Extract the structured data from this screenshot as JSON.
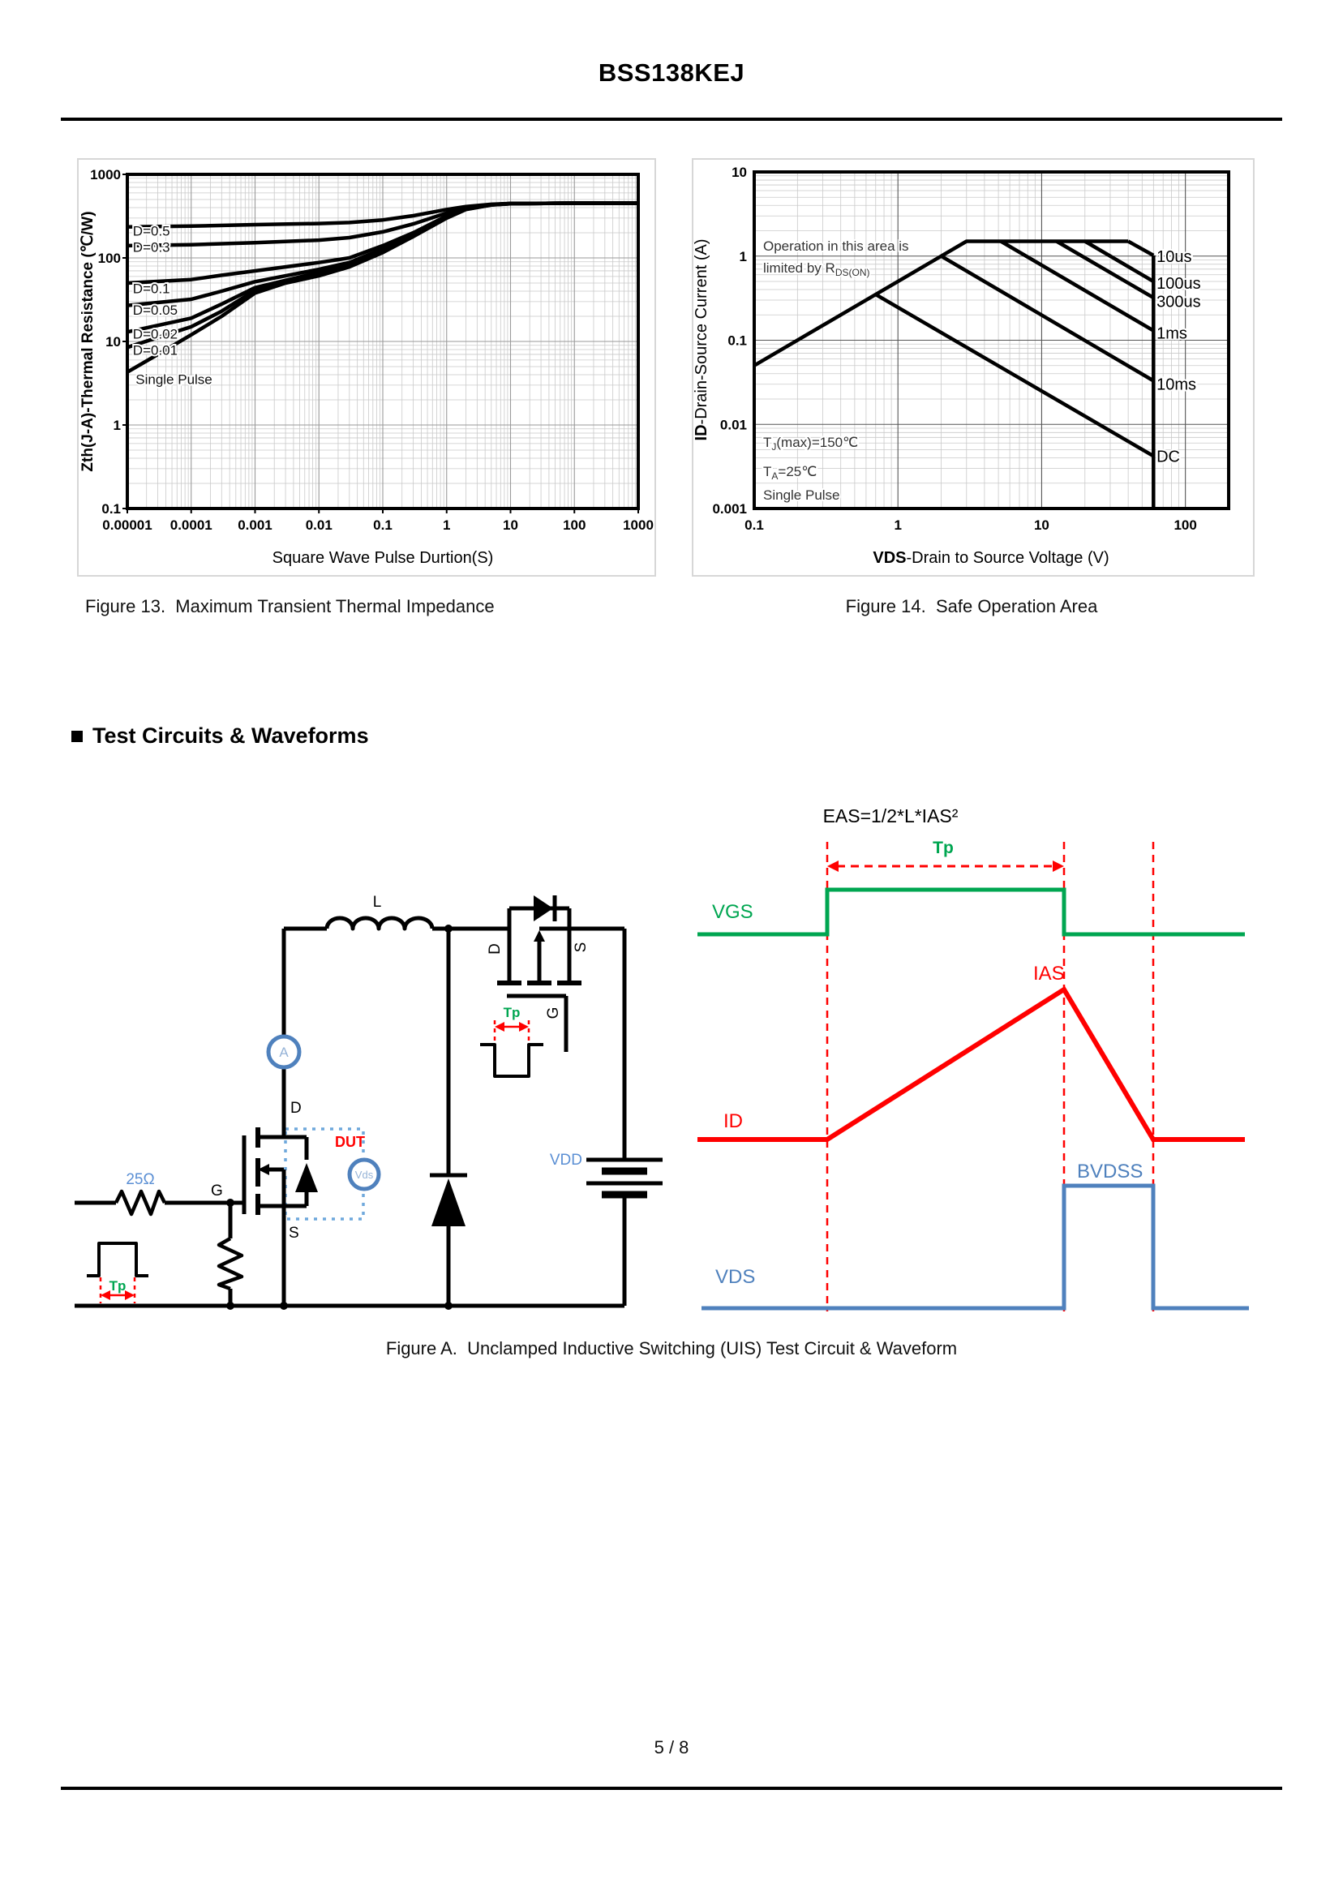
{
  "page": {
    "title": "BSS138KEJ",
    "page_number": "5 / 8"
  },
  "sections": {
    "bullet": "■",
    "test_circuits_heading": "Test Circuits & Waveforms"
  },
  "figure13": {
    "caption": "Figure 13.  Maximum Transient Thermal Impedance",
    "ylabel": "Zth(J-A)-Thermal  Resistance (℃/W)",
    "xlabel": "Square Wave Pulse Durtion(S)"
  },
  "figure14": {
    "caption": "Figure 14.  Safe Operation Area",
    "ylabel_bold": "ID",
    "ylabel_rest": "-Drain-Source Current  (A)",
    "xlabel_bold": "VDS",
    "xlabel_rest": "-Drain to Source Voltage (V)",
    "annotations": {
      "op_line1": "Operation in this area is",
      "op_line2_prefix": "limited by R",
      "op_line2_sub": "DS(ON)",
      "tj_prefix": "T",
      "tj_sub": "J",
      "tj_rest": "(max)=150℃",
      "ta_prefix": "T",
      "ta_sub": "A",
      "ta_rest": "=25℃",
      "single_pulse": "Single Pulse"
    }
  },
  "figure_a": {
    "caption": "Figure A.  Unclamped Inductive Switching (UIS) Test Circuit & Waveform",
    "circuit": {
      "inductor_label": "L",
      "ammeter_label": "A",
      "drain_label": "D",
      "gate_label": "G",
      "source_label": "S",
      "dut_label": "DUT",
      "vds_meter_label": "Vds",
      "gate_resistor_label": "25Ω",
      "pulse_width_label": "Tp",
      "supply_label": "VDD",
      "hs_drain_label": "D",
      "hs_source_label": "S",
      "hs_gate_label": "G",
      "hs_pulse_width_label": "Tp"
    },
    "waveform": {
      "formula": "EAS=1/2*L*IAS²",
      "tp_label": "Tp",
      "vgs_label": "VGS",
      "id_label": "ID",
      "ias_label": "IAS",
      "bvdss_label": "BVDSS",
      "vds_label": "VDS"
    }
  },
  "colors": {
    "green": "#00A651",
    "red": "#FF0000",
    "blue": "#4F81BD",
    "light_blue": "#95B3D7",
    "label_blue": "#5B8FD4",
    "dashed_box_blue": "#6FA8DC"
  },
  "chart_data": [
    {
      "type": "line",
      "title": "Figure 13. Maximum Transient Thermal Impedance",
      "xlabel": "Square Wave Pulse Durtion(S)",
      "ylabel": "Zth(J-A)-Thermal Resistance (C/W)",
      "xlim": [
        1e-05,
        1000
      ],
      "ylim": [
        0.1,
        1000
      ],
      "log_x": true,
      "log_y": true,
      "grid": true,
      "xticks": {
        "values": [
          1e-05,
          0.0001,
          0.001,
          0.01,
          0.1,
          1,
          10,
          100,
          1000
        ],
        "labels": [
          "0.00001",
          "0.0001",
          "0.001",
          "0.01",
          "0.1",
          "1",
          "10",
          "100",
          "1000"
        ]
      },
      "yticks": {
        "values": [
          1000,
          100,
          10,
          1,
          0.1
        ],
        "labels": [
          "1000",
          "100",
          "10",
          "1",
          "0.1"
        ]
      },
      "series": [
        {
          "name": "D=0.5",
          "points": [
            [
              1e-05,
              235
            ],
            [
              0.0001,
              240
            ],
            [
              0.001,
              250
            ],
            [
              0.01,
              258
            ],
            [
              0.03,
              265
            ],
            [
              0.1,
              285
            ],
            [
              0.3,
              320
            ],
            [
              1,
              380
            ],
            [
              2,
              412
            ],
            [
              5,
              438
            ],
            [
              10,
              448
            ],
            [
              100,
              452
            ],
            [
              1000,
              452
            ]
          ]
        },
        {
          "name": "D=0.3",
          "points": [
            [
              1e-05,
              140
            ],
            [
              0.0001,
              144
            ],
            [
              0.001,
              152
            ],
            [
              0.01,
              163
            ],
            [
              0.03,
              175
            ],
            [
              0.1,
              205
            ],
            [
              0.3,
              255
            ],
            [
              1,
              345
            ],
            [
              2,
              395
            ],
            [
              5,
              435
            ],
            [
              10,
              447
            ],
            [
              100,
              452
            ],
            [
              1000,
              452
            ]
          ]
        },
        {
          "name": "D=0.1",
          "points": [
            [
              1e-05,
              50
            ],
            [
              0.0001,
              55
            ],
            [
              0.0003,
              62
            ],
            [
              0.001,
              70
            ],
            [
              0.01,
              88
            ],
            [
              0.03,
              100
            ],
            [
              0.1,
              140
            ],
            [
              0.3,
              200
            ],
            [
              1,
              318
            ],
            [
              2,
              388
            ],
            [
              5,
              434
            ],
            [
              10,
              447
            ],
            [
              100,
              452
            ],
            [
              1000,
              452
            ]
          ]
        },
        {
          "name": "D=0.05",
          "points": [
            [
              1e-05,
              27
            ],
            [
              0.0001,
              32
            ],
            [
              0.0003,
              40
            ],
            [
              0.001,
              52
            ],
            [
              0.01,
              73
            ],
            [
              0.03,
              88
            ],
            [
              0.1,
              128
            ],
            [
              0.3,
              192
            ],
            [
              1,
              310
            ],
            [
              2,
              385
            ],
            [
              5,
              433
            ],
            [
              10,
              447
            ],
            [
              100,
              452
            ],
            [
              1000,
              452
            ]
          ]
        },
        {
          "name": "D=0.02",
          "points": [
            [
              1e-05,
              13
            ],
            [
              0.0001,
              19
            ],
            [
              0.0003,
              28
            ],
            [
              0.001,
              44
            ],
            [
              0.01,
              67
            ],
            [
              0.03,
              82
            ],
            [
              0.1,
              122
            ],
            [
              0.3,
              186
            ],
            [
              1,
              305
            ],
            [
              2,
              383
            ],
            [
              5,
              432
            ],
            [
              10,
              446
            ],
            [
              100,
              452
            ],
            [
              1000,
              452
            ]
          ]
        },
        {
          "name": "D=0.01",
          "points": [
            [
              1e-05,
              8.5
            ],
            [
              0.0001,
              15
            ],
            [
              0.0003,
              23
            ],
            [
              0.001,
              41
            ],
            [
              0.01,
              64
            ],
            [
              0.03,
              80
            ],
            [
              0.1,
              119
            ],
            [
              0.3,
              183
            ],
            [
              1,
              303
            ],
            [
              2,
              382
            ],
            [
              5,
              431
            ],
            [
              10,
              446
            ],
            [
              100,
              452
            ],
            [
              1000,
              452
            ]
          ]
        },
        {
          "name": "Single Pulse",
          "points": [
            [
              1e-05,
              4.3
            ],
            [
              3e-05,
              7
            ],
            [
              0.0001,
              12
            ],
            [
              0.0003,
              20
            ],
            [
              0.001,
              38
            ],
            [
              0.003,
              50
            ],
            [
              0.01,
              61
            ],
            [
              0.03,
              78
            ],
            [
              0.1,
              116
            ],
            [
              0.3,
              180
            ],
            [
              1,
              300
            ],
            [
              2,
              380
            ],
            [
              5,
              430
            ],
            [
              10,
              445
            ],
            [
              100,
              452
            ],
            [
              1000,
              452
            ]
          ]
        }
      ],
      "series_labels": [
        {
          "text": "D=0.5",
          "x": 1.22e-05,
          "y": 185
        },
        {
          "text": "D=0.3",
          "x": 1.22e-05,
          "y": 118
        },
        {
          "text": "D=0.1",
          "x": 1.22e-05,
          "y": 38
        },
        {
          "text": "D=0.05",
          "x": 1.22e-05,
          "y": 21
        },
        {
          "text": "D=0.02",
          "x": 1.22e-05,
          "y": 10.8
        },
        {
          "text": "D=0.01",
          "x": 1.22e-05,
          "y": 6.9
        },
        {
          "text": "Single Pulse",
          "x": 1.35e-05,
          "y": 3.1
        }
      ]
    },
    {
      "type": "line",
      "title": "Figure 14. Safe Operation Area",
      "xlabel": "VDS-Drain to Source Voltage (V)",
      "ylabel": "ID-Drain-Source Current (A)",
      "xlim": [
        0.1,
        200
      ],
      "ylim": [
        0.001,
        10
      ],
      "log_x": true,
      "log_y": true,
      "grid": true,
      "conditions": [
        "TJ(max)=150C",
        "TA=25C",
        "Single Pulse"
      ],
      "note": "Operation in this area is limited by RDS(ON)",
      "xticks": {
        "values": [
          0.1,
          1,
          10,
          100
        ],
        "labels": [
          "0.1",
          "1",
          "10",
          "100"
        ]
      },
      "yticks": {
        "values": [
          10,
          1,
          0.1,
          0.01,
          0.001
        ],
        "labels": [
          "10",
          "1",
          "0.1",
          "0.01",
          "0.001"
        ]
      },
      "lines": [
        {
          "name": "rdson-limit",
          "points": [
            [
              0.1,
              0.05
            ],
            [
              3,
              1.5
            ],
            [
              40,
              1.5
            ]
          ]
        },
        {
          "name": "10us",
          "points": [
            [
              40,
              1.5
            ],
            [
              60,
              1.02
            ]
          ]
        },
        {
          "name": "100us",
          "points": [
            [
              20,
              1.5
            ],
            [
              60,
              0.5
            ]
          ]
        },
        {
          "name": "300us",
          "points": [
            [
              12.7,
              1.5
            ],
            [
              60,
              0.32
            ]
          ]
        },
        {
          "name": "1ms",
          "points": [
            [
              5.2,
              1.5
            ],
            [
              60,
              0.13
            ]
          ]
        },
        {
          "name": "10ms",
          "points": [
            [
              2,
              1.0
            ],
            [
              60,
              0.033
            ]
          ]
        },
        {
          "name": "DC",
          "points": [
            [
              0.7,
              0.35
            ],
            [
              60,
              0.0042
            ]
          ]
        },
        {
          "name": "vds-max",
          "points": [
            [
              60,
              1.02
            ],
            [
              60,
              0.001
            ]
          ]
        }
      ],
      "line_labels": [
        {
          "text": "10us",
          "x": 63,
          "y": 1.0
        },
        {
          "text": "100us",
          "x": 63,
          "y": 0.48
        },
        {
          "text": "300us",
          "x": 63,
          "y": 0.29
        },
        {
          "text": "1ms",
          "x": 63,
          "y": 0.122
        },
        {
          "text": "10ms",
          "x": 63,
          "y": 0.03
        },
        {
          "text": "DC",
          "x": 63,
          "y": 0.0042
        }
      ]
    }
  ]
}
